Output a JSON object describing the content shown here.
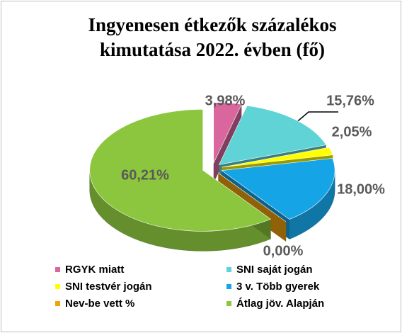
{
  "chart_data": {
    "type": "pie3d",
    "title": [
      "Ingyenesen étkezők százalékos",
      "kimutatása 2022. évben (fő)"
    ],
    "categories": [
      "RGYK miatt",
      "SNI saját jogán",
      "SNI testvér jogán",
      "3 v. Több gyerek",
      "Nev-be vett %",
      "Átlag jöv. Alapján"
    ],
    "values": [
      3.98,
      15.76,
      2.05,
      18.0,
      0.0,
      60.21
    ],
    "value_labels": [
      "3,98%",
      "15,76%",
      "2,05%",
      "18,00%",
      "0,00%",
      "60,21%"
    ],
    "colors": [
      "#d9679e",
      "#5fd3d6",
      "#ffff00",
      "#15a4e6",
      "#f2a10c",
      "#8cc63f"
    ],
    "legend": "bottom"
  }
}
